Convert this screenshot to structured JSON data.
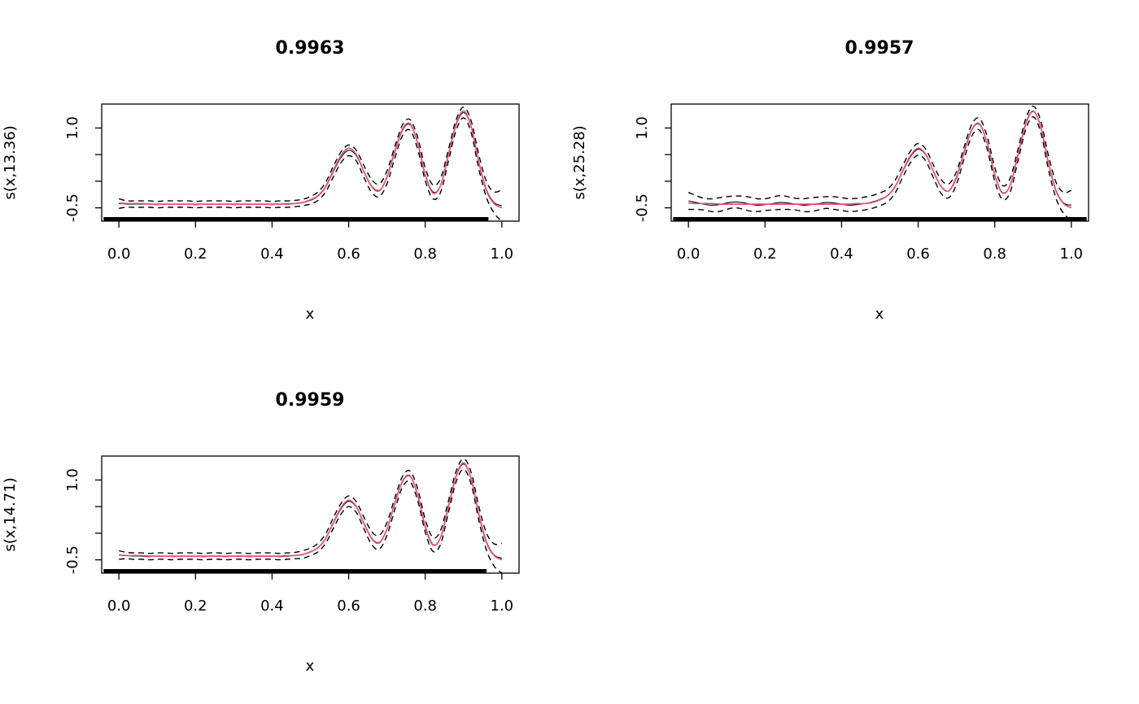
{
  "figure": {
    "background": "#ffffff"
  },
  "chart_data": {
    "type": "line",
    "layout": "2x2 grid, bottom-right panel empty",
    "x_range": [
      -0.045,
      1.045
    ],
    "y_range": [
      -0.75,
      1.45
    ],
    "x_ticks": [
      0.0,
      0.2,
      0.4,
      0.6,
      0.8,
      1.0
    ],
    "x_tick_labels": [
      "0.0",
      "0.2",
      "0.4",
      "0.6",
      "0.8",
      "1.0"
    ],
    "y_ticks": [
      -0.5,
      0.0,
      0.5,
      1.0
    ],
    "y_tick_labels": [
      "-0.5",
      "",
      "",
      "1.0"
    ],
    "colors": {
      "truth_line": "#DF536B",
      "estimate_line": "#000000",
      "ci_line": "#000000",
      "rug": "#000000",
      "box": "#000000"
    },
    "x": [
      0,
      0.02,
      0.04,
      0.06,
      0.08,
      0.1,
      0.12,
      0.14,
      0.16,
      0.18,
      0.2,
      0.22,
      0.24,
      0.26,
      0.28,
      0.3,
      0.32,
      0.34,
      0.36,
      0.38,
      0.4,
      0.42,
      0.44,
      0.46,
      0.48,
      0.5,
      0.52,
      0.54,
      0.56,
      0.58,
      0.6,
      0.62,
      0.64,
      0.66,
      0.68,
      0.7,
      0.72,
      0.74,
      0.76,
      0.78,
      0.8,
      0.82,
      0.84,
      0.86,
      0.88,
      0.9,
      0.92,
      0.94,
      0.96,
      0.98,
      1
    ],
    "truth": [
      -0.41,
      -0.42,
      -0.42,
      -0.42,
      -0.43,
      -0.43,
      -0.43,
      -0.43,
      -0.43,
      -0.43,
      -0.43,
      -0.43,
      -0.43,
      -0.43,
      -0.43,
      -0.43,
      -0.43,
      -0.43,
      -0.43,
      -0.43,
      -0.43,
      -0.43,
      -0.42,
      -0.42,
      -0.4,
      -0.35,
      -0.27,
      -0.1,
      0.2,
      0.48,
      0.62,
      0.5,
      0.18,
      -0.1,
      -0.18,
      0.08,
      0.55,
      0.97,
      1.08,
      0.72,
      0.12,
      -0.22,
      -0.08,
      0.48,
      1.06,
      1.32,
      1.02,
      0.35,
      -0.18,
      -0.42,
      -0.5
    ],
    "panels": [
      {
        "title": "0.9963",
        "ylabel": "s(x,13.36)",
        "xlabel": "x",
        "estimate": [
          -0.42,
          -0.43,
          -0.43,
          -0.43,
          -0.43,
          -0.44,
          -0.43,
          -0.43,
          -0.43,
          -0.43,
          -0.44,
          -0.43,
          -0.43,
          -0.43,
          -0.43,
          -0.44,
          -0.43,
          -0.43,
          -0.43,
          -0.43,
          -0.44,
          -0.43,
          -0.43,
          -0.42,
          -0.4,
          -0.36,
          -0.28,
          -0.11,
          0.18,
          0.45,
          0.58,
          0.48,
          0.18,
          -0.09,
          -0.17,
          0.07,
          0.53,
          0.95,
          1.06,
          0.72,
          0.13,
          -0.2,
          -0.08,
          0.47,
          1.04,
          1.29,
          1.02,
          0.36,
          -0.16,
          -0.4,
          -0.46
        ],
        "ci_halfwidth": [
          0.09,
          0.06,
          0.06,
          0.06,
          0.06,
          0.06,
          0.06,
          0.06,
          0.06,
          0.06,
          0.06,
          0.06,
          0.06,
          0.06,
          0.06,
          0.06,
          0.06,
          0.06,
          0.06,
          0.06,
          0.06,
          0.06,
          0.06,
          0.06,
          0.06,
          0.07,
          0.08,
          0.09,
          0.1,
          0.1,
          0.1,
          0.1,
          0.11,
          0.12,
          0.12,
          0.12,
          0.11,
          0.1,
          0.1,
          0.11,
          0.12,
          0.13,
          0.13,
          0.11,
          0.1,
          0.1,
          0.11,
          0.13,
          0.15,
          0.2,
          0.3
        ],
        "rug": {
          "start": -0.04,
          "end": 0.965
        }
      },
      {
        "title": "0.9957",
        "ylabel": "s(x,25.28)",
        "xlabel": "x",
        "estimate": [
          -0.37,
          -0.4,
          -0.43,
          -0.45,
          -0.44,
          -0.41,
          -0.39,
          -0.4,
          -0.43,
          -0.45,
          -0.44,
          -0.42,
          -0.4,
          -0.41,
          -0.43,
          -0.45,
          -0.44,
          -0.42,
          -0.4,
          -0.41,
          -0.43,
          -0.45,
          -0.44,
          -0.42,
          -0.39,
          -0.34,
          -0.27,
          -0.1,
          0.19,
          0.46,
          0.6,
          0.49,
          0.18,
          -0.1,
          -0.18,
          0.06,
          0.53,
          0.96,
          1.07,
          0.73,
          0.13,
          -0.21,
          -0.08,
          0.47,
          1.05,
          1.31,
          1.03,
          0.36,
          -0.17,
          -0.41,
          -0.45
        ],
        "ci_halfwidth": [
          0.16,
          0.13,
          0.11,
          0.12,
          0.13,
          0.12,
          0.11,
          0.12,
          0.13,
          0.12,
          0.11,
          0.12,
          0.13,
          0.12,
          0.11,
          0.12,
          0.13,
          0.12,
          0.11,
          0.12,
          0.12,
          0.12,
          0.12,
          0.12,
          0.12,
          0.12,
          0.12,
          0.12,
          0.11,
          0.11,
          0.11,
          0.11,
          0.12,
          0.13,
          0.13,
          0.12,
          0.11,
          0.11,
          0.11,
          0.12,
          0.13,
          0.13,
          0.13,
          0.11,
          0.1,
          0.1,
          0.11,
          0.13,
          0.15,
          0.2,
          0.28
        ],
        "rug": {
          "start": -0.04,
          "end": 1.04
        }
      },
      {
        "title": "0.9959",
        "ylabel": "s(x,14.71)",
        "xlabel": "x",
        "estimate": [
          -0.41,
          -0.42,
          -0.43,
          -0.43,
          -0.44,
          -0.43,
          -0.43,
          -0.44,
          -0.43,
          -0.43,
          -0.43,
          -0.44,
          -0.43,
          -0.43,
          -0.44,
          -0.43,
          -0.43,
          -0.44,
          -0.43,
          -0.43,
          -0.43,
          -0.44,
          -0.43,
          -0.42,
          -0.4,
          -0.35,
          -0.27,
          -0.1,
          0.19,
          0.46,
          0.6,
          0.49,
          0.19,
          -0.09,
          -0.17,
          0.08,
          0.54,
          0.96,
          1.07,
          0.73,
          0.14,
          -0.21,
          -0.08,
          0.48,
          1.05,
          1.3,
          1.03,
          0.37,
          -0.16,
          -0.41,
          -0.47
        ],
        "ci_halfwidth": [
          0.08,
          0.06,
          0.06,
          0.06,
          0.06,
          0.06,
          0.06,
          0.06,
          0.06,
          0.06,
          0.06,
          0.06,
          0.06,
          0.06,
          0.06,
          0.06,
          0.06,
          0.06,
          0.06,
          0.06,
          0.06,
          0.06,
          0.06,
          0.06,
          0.07,
          0.07,
          0.08,
          0.09,
          0.1,
          0.1,
          0.1,
          0.1,
          0.11,
          0.12,
          0.13,
          0.12,
          0.11,
          0.1,
          0.1,
          0.11,
          0.12,
          0.13,
          0.13,
          0.11,
          0.1,
          0.1,
          0.11,
          0.13,
          0.16,
          0.21,
          0.28
        ],
        "rug": {
          "start": -0.04,
          "end": 0.96
        }
      }
    ]
  }
}
